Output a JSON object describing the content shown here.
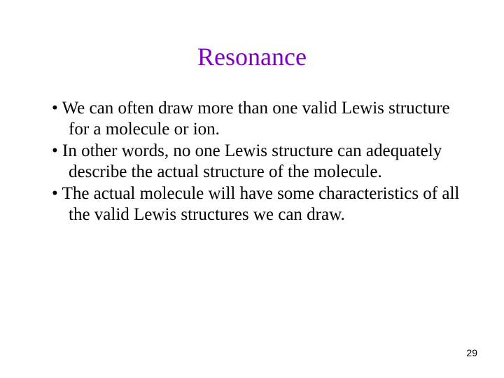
{
  "slide": {
    "title": "Resonance",
    "title_color": "#8000c0",
    "body_color": "#000000",
    "background_color": "#ffffff",
    "title_fontsize": 36,
    "body_fontsize": 25,
    "bullets": [
      "We can often draw more than one valid Lewis structure for a molecule or ion.",
      "In other words, no one Lewis structure can adequately describe the actual structure of the molecule.",
      "The actual molecule will have some characteristics of all the valid Lewis structures we can draw."
    ],
    "page_number": "29"
  }
}
